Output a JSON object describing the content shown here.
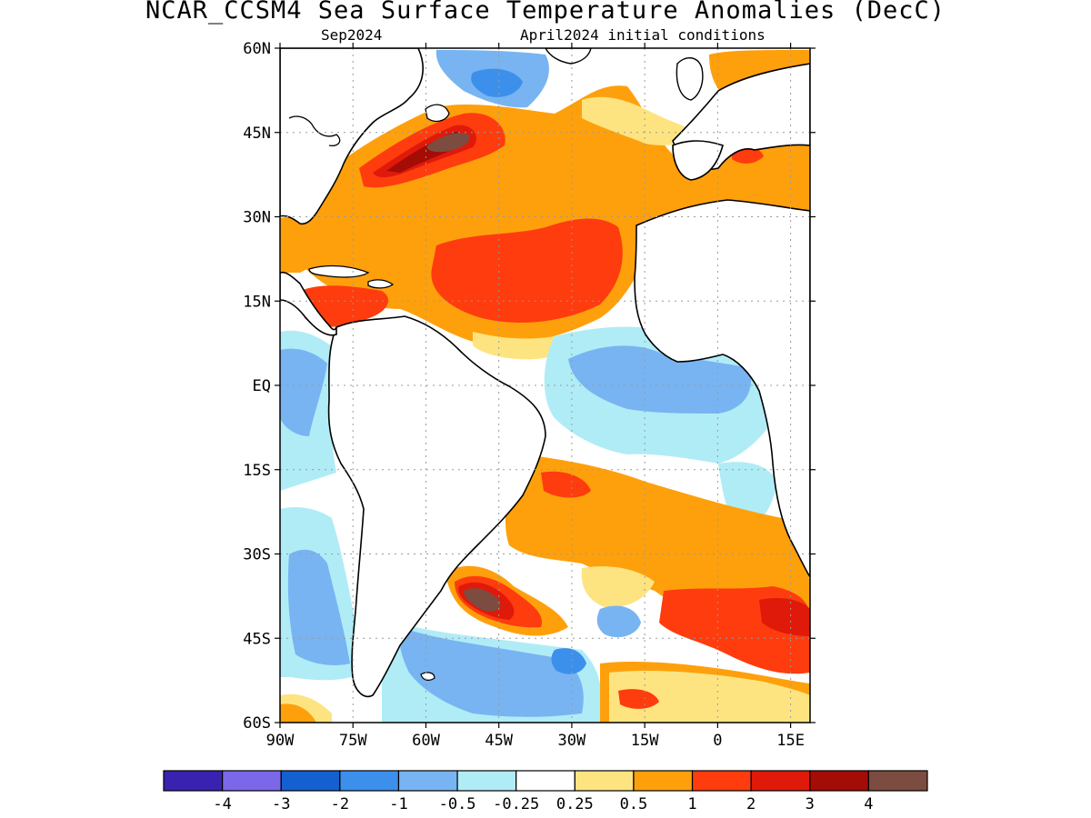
{
  "title": "NCAR_CCSM4 Sea Surface Temperature Anomalies (DecC)",
  "subtitle_left": "Sep2024",
  "subtitle_right": "April2024 initial conditions",
  "y_tick_labels": [
    "60N",
    "45N",
    "30N",
    "15N",
    "EQ",
    "15S",
    "30S",
    "45S",
    "60S"
  ],
  "x_tick_labels": [
    "90W",
    "75W",
    "60W",
    "45W",
    "30W",
    "15W",
    "0",
    "15E"
  ],
  "colorbar": {
    "colors": [
      "#3a22b0",
      "#7b68e8",
      "#1560d0",
      "#3c90ec",
      "#78b4f2",
      "#b0ecf6",
      "#ffffff",
      "#fee481",
      "#fea00c",
      "#fe3c0e",
      "#e01a0a",
      "#a40c06",
      "#7c4c40"
    ],
    "labels": [
      "-4",
      "-3",
      "-2",
      "-1",
      "-0.5",
      "-0.25",
      "0.25",
      "0.5",
      "1",
      "2",
      "3",
      "4"
    ]
  },
  "map": {
    "lat_range": [
      -60,
      60
    ],
    "lon_range": [
      -90,
      19
    ],
    "land_color": "#ffffff",
    "coastline_color": "#000000",
    "graticule": "dotted"
  }
}
